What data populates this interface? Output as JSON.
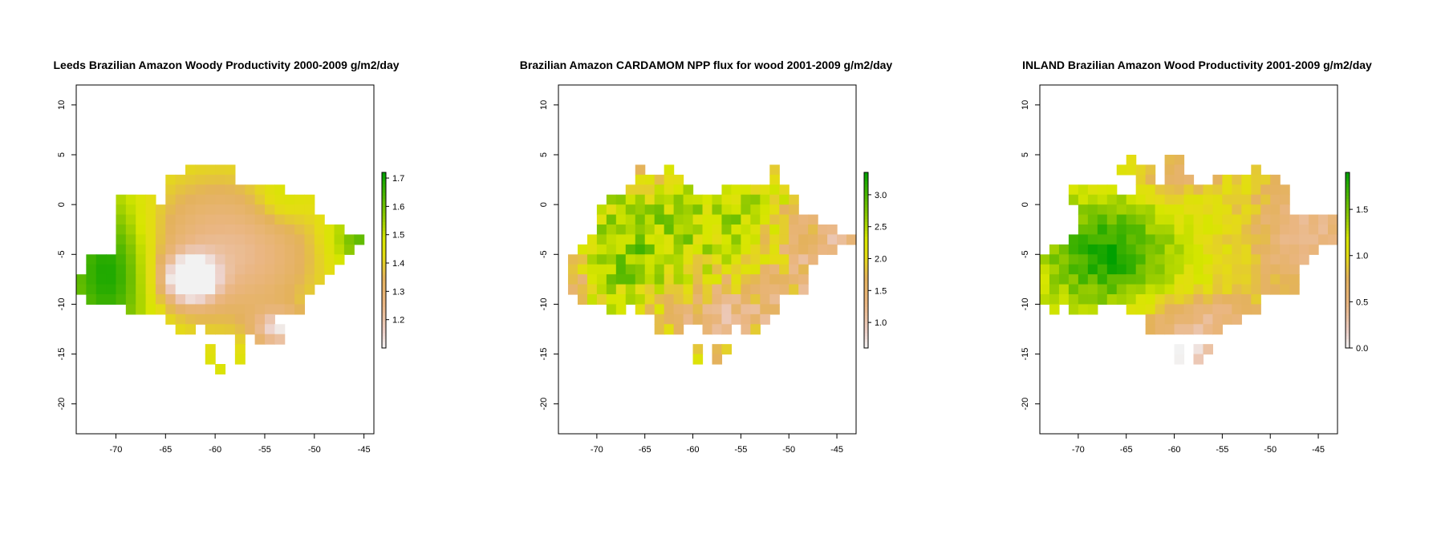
{
  "chart_data": [
    {
      "type": "heatmap",
      "title": "Leeds Brazilian Amazon Woody Productivity 2000-2009 g/m2/day",
      "xlabel": "",
      "ylabel": "",
      "xlim": [
        -74,
        -44
      ],
      "ylim": [
        -23,
        12
      ],
      "x_ticks": [
        -70,
        -65,
        -60,
        -55,
        -50,
        -45
      ],
      "y_ticks": [
        10,
        5,
        0,
        -5,
        -10,
        -15,
        -20
      ],
      "x_tick_labels": [
        "-70",
        "-65",
        "-60",
        "-55",
        "-50",
        "-45"
      ],
      "y_tick_labels": [
        "10",
        "5",
        "0",
        "-5",
        "-10",
        "-15",
        "-20"
      ],
      "grid": false,
      "legend": {
        "position": "right",
        "min": 1.1,
        "max": 1.72,
        "ticks": [
          1.2,
          1.3,
          1.4,
          1.5,
          1.6,
          1.7
        ],
        "tick_labels": [
          "1.2",
          "1.3",
          "1.4",
          "1.5",
          "1.6",
          "1.7"
        ]
      },
      "field": {
        "type": "gaussian_blobs",
        "base": 1.5,
        "blobs": [
          {
            "x": -62.5,
            "y": -7.5,
            "amp": -0.45,
            "sx": 1.8,
            "sy": 1.6
          },
          {
            "x": -60.5,
            "y": -4.5,
            "amp": -0.22,
            "sx": 7,
            "sy": 6
          },
          {
            "x": -54.5,
            "y": -5.5,
            "amp": -0.08,
            "sx": 5,
            "sy": 5
          },
          {
            "x": -53.5,
            "y": -12.5,
            "amp": -0.3,
            "sx": 1.8,
            "sy": 1.3
          },
          {
            "x": -70.5,
            "y": -6.5,
            "amp": 0.26,
            "sx": 3,
            "sy": 5
          },
          {
            "x": -45.5,
            "y": -3.5,
            "amp": 0.15,
            "sx": 2,
            "sy": 2
          },
          {
            "x": -53.5,
            "y": 0.5,
            "amp": 0.08,
            "sx": 2,
            "sy": 2
          }
        ]
      },
      "mask_rows": [
        {
          "y": 5.5,
          "x": [
            -60.5
          ]
        },
        {
          "y": 4.5,
          "x": [
            -60.5
          ]
        },
        {
          "y": 3.5,
          "x": [
            -62.5,
            -58.5
          ]
        },
        {
          "y": 2.5,
          "x": [
            -64.5,
            -58.5
          ]
        },
        {
          "y": 1.5,
          "x": [
            -64.5,
            -56.5,
            -55.5,
            -53.5,
            -51.5
          ]
        },
        {
          "y": 0.5,
          "x": [
            -69.5,
            -66.5,
            -64.5,
            -50.5
          ]
        },
        {
          "y": -0.5,
          "x": [
            -69.5,
            -50.5
          ]
        },
        {
          "y": -1.5,
          "x": [
            -69.5,
            -49.5
          ]
        },
        {
          "y": -2.5,
          "x": [
            -69.5,
            -47.5
          ]
        },
        {
          "y": -3.5,
          "x": [
            -69.5,
            -45.5
          ]
        },
        {
          "y": -4.5,
          "x": [
            -69.5,
            -46.5
          ]
        },
        {
          "y": -5.5,
          "x": [
            -72.5,
            -47.5
          ]
        },
        {
          "y": -6.5,
          "x": [
            -72.5,
            -48.5
          ]
        },
        {
          "y": -7.5,
          "x": [
            -73.5,
            -49.5
          ]
        },
        {
          "y": -8.5,
          "x": [
            -73.5,
            -50.5
          ]
        },
        {
          "y": -9.5,
          "x": [
            -72.5,
            -51.5
          ]
        },
        {
          "y": -10.5,
          "x": [
            -68.5,
            -51.5
          ]
        },
        {
          "y": -11.5,
          "x": [
            -64.5,
            -54.5
          ]
        },
        {
          "y": -12.5,
          "x": [
            -63.5,
            -62.5,
            -60.5,
            -53.5
          ]
        },
        {
          "y": -13.5,
          "x": [
            -59.5,
            -59.5,
            -57.5,
            -57.5,
            -55.5,
            -53.5
          ]
        },
        {
          "y": -14.5,
          "x": [
            -60.5,
            -60.5,
            -57.5,
            -57.5
          ]
        },
        {
          "y": -15.5,
          "x": [
            -60.5,
            -57.5
          ]
        },
        {
          "y": -16.5,
          "x": [
            -59.5,
            -59.5
          ]
        }
      ],
      "mask_holes": [
        {
          "y": -13.5,
          "x": [
            -59.5,
            -58.5
          ]
        },
        {
          "y": -14.5,
          "x": [
            -59.5,
            -58.5
          ]
        },
        {
          "y": -15.5,
          "x": [
            -59.5,
            -58.5
          ]
        }
      ],
      "palette": "terrain_rev"
    },
    {
      "type": "heatmap",
      "title": "Brazilian Amazon CARDAMOM NPP flux for wood 2001-2009 g/m2/day",
      "xlabel": "",
      "ylabel": "",
      "xlim": [
        -74,
        -43
      ],
      "ylim": [
        -23,
        12
      ],
      "x_ticks": [
        -70,
        -65,
        -60,
        -55,
        -50,
        -45
      ],
      "y_ticks": [
        10,
        5,
        0,
        -5,
        -10,
        -15,
        -20
      ],
      "x_tick_labels": [
        "-70",
        "-65",
        "-60",
        "-55",
        "-50",
        "-45"
      ],
      "y_tick_labels": [
        "10",
        "5",
        "0",
        "-5",
        "-10",
        "-15",
        "-20"
      ],
      "grid": false,
      "legend": {
        "position": "right",
        "min": 0.6,
        "max": 3.35,
        "ticks": [
          1.0,
          1.5,
          2.0,
          2.5,
          3.0
        ],
        "tick_labels": [
          "1.0",
          "1.5",
          "2.0",
          "2.5",
          "3.0"
        ]
      },
      "field": {
        "type": "gaussian_blobs",
        "base": 2.0,
        "noise": 0.5,
        "blobs": [
          {
            "x": -67,
            "y": -5,
            "amp": 0.7,
            "sx": 4,
            "sy": 4
          },
          {
            "x": -57,
            "y": -1,
            "amp": 0.5,
            "sx": 5,
            "sy": 3
          },
          {
            "x": -47,
            "y": -5,
            "amp": -0.8,
            "sx": 3,
            "sy": 4
          },
          {
            "x": -57,
            "y": -11,
            "amp": -0.7,
            "sx": 5,
            "sy": 2
          },
          {
            "x": -72,
            "y": -7,
            "amp": -0.5,
            "sx": 1.5,
            "sy": 3
          }
        ]
      },
      "mask_rows": [
        {
          "y": 3.5,
          "x": [
            -65.5,
            -65.5,
            -62.5,
            -62.5,
            -51.5,
            -51.5
          ]
        },
        {
          "y": 2.5,
          "x": [
            -65.5,
            -61.5,
            -51.5,
            -51.5
          ]
        },
        {
          "y": 1.5,
          "x": [
            -66.5,
            -60.5,
            -56.5,
            -50.5
          ]
        },
        {
          "y": 0.5,
          "x": [
            -68.5,
            -49.5
          ]
        },
        {
          "y": -0.5,
          "x": [
            -69.5,
            -49.5
          ]
        },
        {
          "y": -1.5,
          "x": [
            -69.5,
            -47.5
          ]
        },
        {
          "y": -2.5,
          "x": [
            -69.5,
            -45.5
          ]
        },
        {
          "y": -3.5,
          "x": [
            -70.5,
            -43.5
          ]
        },
        {
          "y": -4.5,
          "x": [
            -71.5,
            -45.5
          ]
        },
        {
          "y": -5.5,
          "x": [
            -72.5,
            -47.5
          ]
        },
        {
          "y": -6.5,
          "x": [
            -72.5,
            -48.5
          ]
        },
        {
          "y": -7.5,
          "x": [
            -72.5,
            -48.5
          ]
        },
        {
          "y": -8.5,
          "x": [
            -72.5,
            -48.5
          ]
        },
        {
          "y": -9.5,
          "x": [
            -71.5,
            -51.5
          ]
        },
        {
          "y": -10.5,
          "x": [
            -68.5,
            -67.5,
            -65.5,
            -51.5
          ]
        },
        {
          "y": -11.5,
          "x": [
            -63.5,
            -52.5
          ]
        },
        {
          "y": -12.5,
          "x": [
            -63.5,
            -61.5,
            -58.5,
            -56.5,
            -54.5,
            -53.5
          ]
        },
        {
          "y": -14.5,
          "x": [
            -59.5,
            -59.5,
            -57.5,
            -56.5
          ]
        },
        {
          "y": -15.5,
          "x": [
            -59.5,
            -59.5,
            -57.5,
            -57.5
          ]
        }
      ],
      "palette": "terrain_rev"
    },
    {
      "type": "heatmap",
      "title": "INLAND Brazilian Amazon Wood Productivity 2001-2009 g/m2/day",
      "xlabel": "",
      "ylabel": "",
      "xlim": [
        -74,
        -43
      ],
      "ylim": [
        -23,
        12
      ],
      "x_ticks": [
        -70,
        -65,
        -60,
        -55,
        -50,
        -45
      ],
      "y_ticks": [
        10,
        5,
        0,
        -5,
        -10,
        -15,
        -20
      ],
      "x_tick_labels": [
        "-70",
        "-65",
        "-60",
        "-55",
        "-50",
        "-45"
      ],
      "y_tick_labels": [
        "10",
        "5",
        "0",
        "-5",
        "-10",
        "-15",
        "-20"
      ],
      "grid": false,
      "legend": {
        "position": "right",
        "min": 0.0,
        "max": 1.9,
        "ticks": [
          0.0,
          0.5,
          1.0,
          1.5
        ],
        "tick_labels": [
          "0.0",
          "0.5",
          "1.0",
          "1.5"
        ]
      },
      "field": {
        "type": "gaussian_blobs",
        "base": 1.0,
        "noise": 0.15,
        "blobs": [
          {
            "x": -67,
            "y": -5,
            "amp": 0.8,
            "sx": 5,
            "sy": 4
          },
          {
            "x": -46,
            "y": -3,
            "amp": -0.6,
            "sx": 4,
            "sy": 4
          },
          {
            "x": -57,
            "y": -12,
            "amp": -0.6,
            "sx": 5,
            "sy": 2
          },
          {
            "x": -59,
            "y": -15,
            "amp": -0.9,
            "sx": 2,
            "sy": 1
          },
          {
            "x": -60,
            "y": 3,
            "amp": -0.4,
            "sx": 3,
            "sy": 1.5
          }
        ]
      },
      "mask_rows": [
        {
          "y": 4.5,
          "x": [
            -64.5,
            -64.5,
            -60.5,
            -59.5
          ]
        },
        {
          "y": 3.5,
          "x": [
            -65.5,
            -62.5,
            -60.5,
            -59.5,
            -51.5,
            -51.5
          ]
        },
        {
          "y": 2.5,
          "x": [
            -63.5,
            -62.5,
            -60.5,
            -58.5,
            -55.5,
            -49.5
          ]
        },
        {
          "y": 1.5,
          "x": [
            -70.5,
            -66.5,
            -63.5,
            -48.5
          ]
        },
        {
          "y": 0.5,
          "x": [
            -70.5,
            -48.5
          ]
        },
        {
          "y": -0.5,
          "x": [
            -69.5,
            -48.5
          ]
        },
        {
          "y": -1.5,
          "x": [
            -69.5,
            -43.5
          ]
        },
        {
          "y": -2.5,
          "x": [
            -69.5,
            -43.5
          ]
        },
        {
          "y": -3.5,
          "x": [
            -70.5,
            -43.5
          ]
        },
        {
          "y": -4.5,
          "x": [
            -72.5,
            -45.5
          ]
        },
        {
          "y": -5.5,
          "x": [
            -73.5,
            -46.5
          ]
        },
        {
          "y": -6.5,
          "x": [
            -73.5,
            -47.5
          ]
        },
        {
          "y": -7.5,
          "x": [
            -73.5,
            -47.5
          ]
        },
        {
          "y": -8.5,
          "x": [
            -73.5,
            -47.5
          ]
        },
        {
          "y": -9.5,
          "x": [
            -73.5,
            -51.5
          ]
        },
        {
          "y": -10.5,
          "x": [
            -72.5,
            -72.5,
            -70.5,
            -68.5,
            -64.5,
            -51.5
          ]
        },
        {
          "y": -11.5,
          "x": [
            -62.5,
            -53.5
          ]
        },
        {
          "y": -12.5,
          "x": [
            -62.5,
            -55.5
          ]
        },
        {
          "y": -14.5,
          "x": [
            -59.5,
            -59.5,
            -57.5,
            -56.5
          ]
        },
        {
          "y": -15.5,
          "x": [
            -59.5,
            -59.5,
            -57.5,
            -57.5
          ]
        }
      ],
      "palette": "terrain_rev"
    }
  ]
}
